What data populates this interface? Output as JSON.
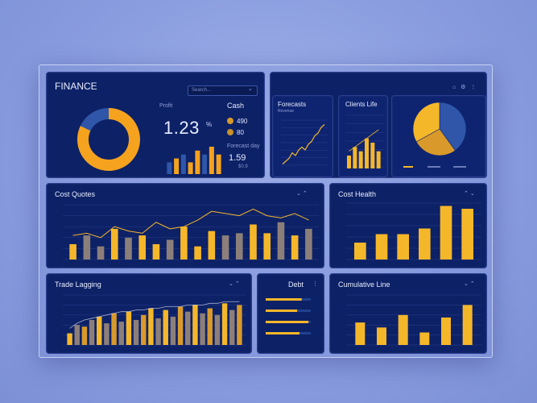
{
  "header": {
    "title": "FINANCE",
    "search_placeholder": "Search..."
  },
  "summary": {
    "label_top": "Profit",
    "value": "1.23",
    "unit": "%",
    "cash_label": "Cash",
    "legend_a": "490",
    "legend_b": "80",
    "forecast_label": "Forecast day",
    "forecast_value": "1.59",
    "forecast_sub": "$0.9"
  },
  "panels": {
    "forecast": {
      "title": "Forecasts",
      "subtitle": "Revenue"
    },
    "clients": {
      "title": "Clients Life"
    },
    "cost_quotes": {
      "title": "Cost Quotes"
    },
    "cost_health": {
      "title": "Cost Health"
    },
    "trade": {
      "title": "Trade Lagging"
    },
    "debt": {
      "title": "Debt"
    },
    "cumulative": {
      "title": "Cumulative Line"
    }
  },
  "colors": {
    "panel": "#0d2166",
    "orange": "#f2a51b",
    "gold": "#f5b72a",
    "blue": "#2f56a8",
    "muted": "#8c7f7a"
  },
  "chart_data": [
    {
      "id": "donut",
      "type": "pie",
      "values": [
        82,
        18
      ],
      "colors": [
        "#f5a21e",
        "#2f56a8"
      ]
    },
    {
      "id": "summary_bars",
      "type": "bar",
      "values": [
        3,
        4,
        5,
        3,
        6,
        5,
        7,
        5
      ],
      "colors": [
        "#2f56a8",
        "#f5a21e",
        "#2f56a8",
        "#f5a21e",
        "#f5a21e",
        "#2f56a8",
        "#f5a21e",
        "#f5a21e"
      ]
    },
    {
      "id": "forecast_line",
      "type": "line",
      "values": [
        1,
        2,
        3,
        5,
        4,
        6,
        7,
        6,
        8,
        9,
        11,
        12,
        14,
        15
      ],
      "ylim": [
        0,
        16
      ]
    },
    {
      "id": "clients_bars",
      "type": "bar",
      "values": [
        3,
        5,
        4,
        7,
        6,
        4
      ],
      "line": [
        4,
        5,
        6,
        7,
        8,
        9
      ],
      "ylim": [
        0,
        12
      ]
    },
    {
      "id": "pie",
      "type": "pie",
      "values": [
        40,
        27,
        33
      ],
      "colors": [
        "#2f56a8",
        "#d99a2b",
        "#f5b72a"
      ]
    },
    {
      "id": "cost_quotes",
      "type": "bar",
      "values": [
        14,
        22,
        12,
        28,
        20,
        22,
        14,
        18,
        30,
        12,
        26,
        22,
        24,
        32,
        24,
        34,
        22,
        28
      ],
      "colors": [
        "#f5b72a",
        "#8c7f7a",
        "#8c7f7a",
        "#f5b72a",
        "#8c7f7a",
        "#f5b72a",
        "#f5b72a",
        "#8c7f7a",
        "#f5b72a",
        "#f5b72a",
        "#f5b72a",
        "#8c7f7a",
        "#8c7f7a",
        "#f5b72a",
        "#f5b72a",
        "#8c7f7a",
        "#f5b72a",
        "#8c7f7a"
      ],
      "line": [
        22,
        24,
        20,
        30,
        26,
        24,
        34,
        28,
        30,
        36,
        44,
        42,
        40,
        46,
        40,
        38,
        42,
        36
      ],
      "ylim": [
        0,
        50
      ]
    },
    {
      "id": "cost_health",
      "type": "bar",
      "values": [
        12,
        18,
        18,
        22,
        38,
        36
      ],
      "ylim": [
        0,
        40
      ]
    },
    {
      "id": "trade_lagging",
      "type": "bar",
      "values": [
        14,
        24,
        22,
        30,
        34,
        26,
        38,
        28,
        40,
        30,
        36,
        44,
        32,
        42,
        34,
        46,
        40,
        48,
        38,
        44,
        36,
        50,
        42,
        48
      ],
      "colors": [
        "#f5b72a",
        "#8c7f7a",
        "#d99a2b",
        "#8c7f7a",
        "#f5b72a",
        "#8c7f7a",
        "#d99a2b",
        "#8c7f7a",
        "#f5b72a",
        "#8c7f7a",
        "#d99a2b",
        "#f5b72a",
        "#8c7f7a",
        "#f5b72a",
        "#8c7f7a",
        "#d99a2b",
        "#8c7f7a",
        "#f5b72a",
        "#8c7f7a",
        "#d99a2b",
        "#8c7f7a",
        "#f5b72a",
        "#8c7f7a",
        "#d99a2b"
      ],
      "line": [
        20,
        26,
        30,
        32,
        34,
        36,
        38,
        40,
        40,
        42,
        42,
        44,
        44,
        46,
        46,
        46,
        48,
        48,
        48,
        50,
        50,
        52,
        52,
        52
      ],
      "ylim": [
        0,
        60
      ]
    },
    {
      "id": "debt",
      "type": "bar",
      "orientation": "horizontal",
      "values": [
        80,
        70,
        95,
        75
      ],
      "xlim": [
        0,
        100
      ]
    },
    {
      "id": "cumulative",
      "type": "bar",
      "values": [
        18,
        14,
        24,
        10,
        22,
        32
      ],
      "ylim": [
        0,
        40
      ]
    }
  ]
}
